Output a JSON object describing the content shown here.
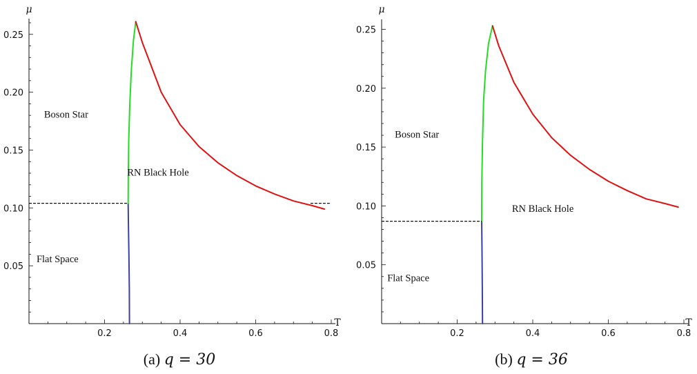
{
  "chart_data": [
    {
      "type": "line",
      "caption": "(a)",
      "caption_math": "q = 30",
      "xlabel": "T",
      "ylabel": "μ",
      "xlim": [
        0,
        0.8
      ],
      "ylim": [
        0,
        0.26
      ],
      "x_ticks": [
        0.2,
        0.4,
        0.6,
        0.8
      ],
      "x_tick_labels": [
        "0.2",
        "0.4",
        "0.6",
        "0.8"
      ],
      "y_ticks": [
        0.05,
        0.1,
        0.15,
        0.2,
        0.25
      ],
      "y_tick_labels": [
        "0.05",
        "0.10",
        "0.15",
        "0.20",
        "0.25"
      ],
      "region_labels": [
        {
          "text": "Boson Star",
          "x": 0.04,
          "y": 0.178
        },
        {
          "text": "RN Black Hole",
          "x": 0.26,
          "y": 0.128
        },
        {
          "text": "Flat Space",
          "x": 0.02,
          "y": 0.053
        }
      ],
      "series": [
        {
          "color": "#3a3fa8",
          "style": "solid",
          "points": [
            [
              0.266,
              0.0
            ],
            [
              0.2655,
              0.03
            ],
            [
              0.2645,
              0.06
            ],
            [
              0.2632,
              0.085
            ],
            [
              0.2625,
              0.104
            ]
          ]
        },
        {
          "color": "#22dd22",
          "style": "solid",
          "points": [
            [
              0.2625,
              0.104
            ],
            [
              0.2628,
              0.13
            ],
            [
              0.2642,
              0.16
            ],
            [
              0.2668,
              0.19
            ],
            [
              0.271,
              0.22
            ],
            [
              0.2765,
              0.245
            ],
            [
              0.2825,
              0.261
            ]
          ]
        },
        {
          "color": "#e01010",
          "style": "solid",
          "points": [
            [
              0.2825,
              0.261
            ],
            [
              0.3,
              0.243
            ],
            [
              0.35,
              0.2
            ],
            [
              0.4,
              0.172
            ],
            [
              0.45,
              0.153
            ],
            [
              0.5,
              0.139
            ],
            [
              0.55,
              0.128
            ],
            [
              0.6,
              0.119
            ],
            [
              0.65,
              0.112
            ],
            [
              0.7,
              0.106
            ],
            [
              0.75,
              0.102
            ],
            [
              0.782,
              0.099
            ]
          ]
        },
        {
          "color": "#111111",
          "style": "dashed",
          "points": [
            [
              0.0,
              0.104
            ],
            [
              0.2625,
              0.104
            ]
          ]
        },
        {
          "color": "#111111",
          "style": "dashed",
          "points": [
            [
              0.745,
              0.104
            ],
            [
              0.8,
              0.104
            ]
          ]
        }
      ]
    },
    {
      "type": "line",
      "caption": "(b)",
      "caption_math": "q = 36",
      "xlabel": "T",
      "ylabel": "μ",
      "xlim": [
        0,
        0.8
      ],
      "ylim": [
        0,
        0.255
      ],
      "x_ticks": [
        0.2,
        0.4,
        0.6,
        0.8
      ],
      "x_tick_labels": [
        "0.2",
        "0.4",
        "0.6",
        "0.8"
      ],
      "y_ticks": [
        0.05,
        0.1,
        0.15,
        0.2,
        0.25
      ],
      "y_tick_labels": [
        "0.05",
        "0.10",
        "0.15",
        "0.20",
        "0.25"
      ],
      "region_labels": [
        {
          "text": "Boson Star",
          "x": 0.035,
          "y": 0.158
        },
        {
          "text": "RN Black Hole",
          "x": 0.345,
          "y": 0.095
        },
        {
          "text": "Flat Space",
          "x": 0.015,
          "y": 0.036
        }
      ],
      "series": [
        {
          "color": "#3a3fa8",
          "style": "solid",
          "points": [
            [
              0.267,
              0.0
            ],
            [
              0.2665,
              0.03
            ],
            [
              0.2657,
              0.06
            ],
            [
              0.2648,
              0.087
            ]
          ]
        },
        {
          "color": "#22dd22",
          "style": "solid",
          "points": [
            [
              0.2648,
              0.087
            ],
            [
              0.2652,
              0.12
            ],
            [
              0.267,
              0.155
            ],
            [
              0.27,
              0.19
            ],
            [
              0.275,
              0.215
            ],
            [
              0.283,
              0.238
            ],
            [
              0.2935,
              0.253
            ]
          ]
        },
        {
          "color": "#e01010",
          "style": "solid",
          "points": [
            [
              0.2935,
              0.253
            ],
            [
              0.31,
              0.236
            ],
            [
              0.35,
              0.205
            ],
            [
              0.4,
              0.178
            ],
            [
              0.45,
              0.158
            ],
            [
              0.5,
              0.143
            ],
            [
              0.55,
              0.131
            ],
            [
              0.6,
              0.121
            ],
            [
              0.65,
              0.113
            ],
            [
              0.7,
              0.106
            ],
            [
              0.75,
              0.102
            ],
            [
              0.785,
              0.099
            ]
          ]
        },
        {
          "color": "#111111",
          "style": "dashed",
          "points": [
            [
              0.0,
              0.087
            ],
            [
              0.2648,
              0.087
            ]
          ]
        }
      ]
    }
  ]
}
